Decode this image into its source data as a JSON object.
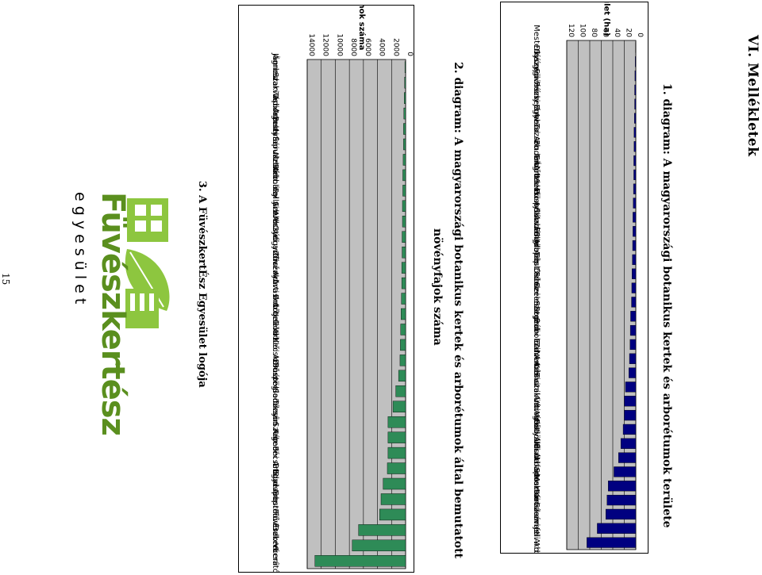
{
  "header": {
    "section_title": "VI. Mellékletek"
  },
  "page_number": "15",
  "diagrams": [
    {
      "caption": "1. diagram: A magyarországi botanikus kertek és arborétumok területe",
      "caption_lines": [
        "1. diagram: A magyarországi botanikus kertek és arborétumok területe"
      ]
    },
    {
      "caption": "2. diagram: A magyarországi botanikus kertek és arborétumok által bemutatott növényfajok száma",
      "caption_lines": [
        "2. diagram: A magyarországi botanikus kertek és arborétumok által bemutatott",
        "növényfajok száma"
      ]
    }
  ],
  "logo": {
    "caption": "3. A FüvészkertÉsz Egyesület logója",
    "wordmark": "Füvészkertész",
    "subtitle": "e g y e s ü l e t"
  },
  "colors": {
    "area_bar": "#000080",
    "taxa_bar": "#2e8b57",
    "plot_bg": "#c0c0c0"
  },
  "chart_data": [
    {
      "type": "bar",
      "orientation": "horizontal",
      "xlabel": "terület (ha)",
      "xlim": [
        0,
        120
      ],
      "ticks": [
        0,
        20,
        40,
        60,
        80,
        100,
        120
      ],
      "grid": true,
      "categories": [
        "Mesterházy",
        "Diószegi",
        "Gyógynövény",
        "Füvészkert",
        "Pécsi Egye.",
        "Jámbor",
        "Avasi Arb.",
        "Tuzson Arb.",
        "Budai Arb.",
        "Erdőteleki",
        "Ágneslaki Arb.",
        "Mucsonyi Arb.",
        "Püspökladányi",
        "Sárvári Arb.",
        "Follyi Arb",
        "Budapest Főv.",
        "Tápiószelei",
        "Debreceni",
        "Szelesztei",
        "Szegedi",
        "Soproni Erd.",
        "Bábolnai Arb.",
        "Zirci Arb",
        "Nemesvitai",
        "Kámoni Arb.",
        "Tiszakürti Arb.",
        "Vácrátóti",
        "Agostyáni",
        "Gödöllői Arb.",
        "Alcsúti arb",
        "Budafapusztai",
        "Soroksári",
        "Martonvásári",
        "Kecskeméti",
        "Szarvasi Arb.",
        "Jeli Arb."
      ],
      "values": [
        0.5,
        1,
        1.5,
        2,
        2,
        2.5,
        3,
        3,
        3.5,
        3.5,
        4,
        4.5,
        5,
        5,
        5.5,
        6,
        6.5,
        7,
        7.5,
        9,
        9.5,
        10,
        11,
        12,
        18,
        20,
        20,
        22,
        26,
        30,
        38,
        48,
        50,
        52,
        67,
        85
      ]
    },
    {
      "type": "bar",
      "orientation": "horizontal",
      "xlabel": "taxonok száma",
      "xlim": [
        0,
        14000
      ],
      "ticks": [
        0,
        2000,
        4000,
        6000,
        8000,
        10000,
        12000,
        14000
      ],
      "grid": true,
      "categories": [
        "Jámbor",
        "Ágneslaki Arb.",
        "Szarvasi Arb.",
        "Tápiószelei",
        "Agostyáni",
        "Budafapusztai",
        "Sárvári Arb.",
        "Mesterházy",
        "Bábolnai Arb.",
        "Follyi Arb",
        "Szelesztei",
        "Alcsúti arb",
        "Gyógynövény",
        "Zirci Arb",
        "Tiszakürti Arb.",
        "Avasi Arb.",
        "Erdőteleki",
        "Jeli Arb.",
        "Gödöllői Arb.",
        "Kecskeméti",
        "Diószegi",
        "Püspökladányi",
        "Soroksári",
        "Tuzson Arb.",
        "Szegedi",
        "Kámoni Arb.",
        "Pécsi Egye.",
        "Budai Arb.",
        "Budapest Főv.",
        "Soproni Erd.",
        "Füvészkert",
        "Debreceni",
        "Vácrátóti"
      ],
      "values": [
        100,
        150,
        200,
        250,
        300,
        300,
        350,
        400,
        400,
        450,
        450,
        500,
        500,
        550,
        550,
        600,
        650,
        700,
        750,
        800,
        1000,
        1400,
        1800,
        2500,
        2500,
        2500,
        2600,
        3200,
        3500,
        3700,
        6700,
        7600,
        12900
      ]
    }
  ]
}
